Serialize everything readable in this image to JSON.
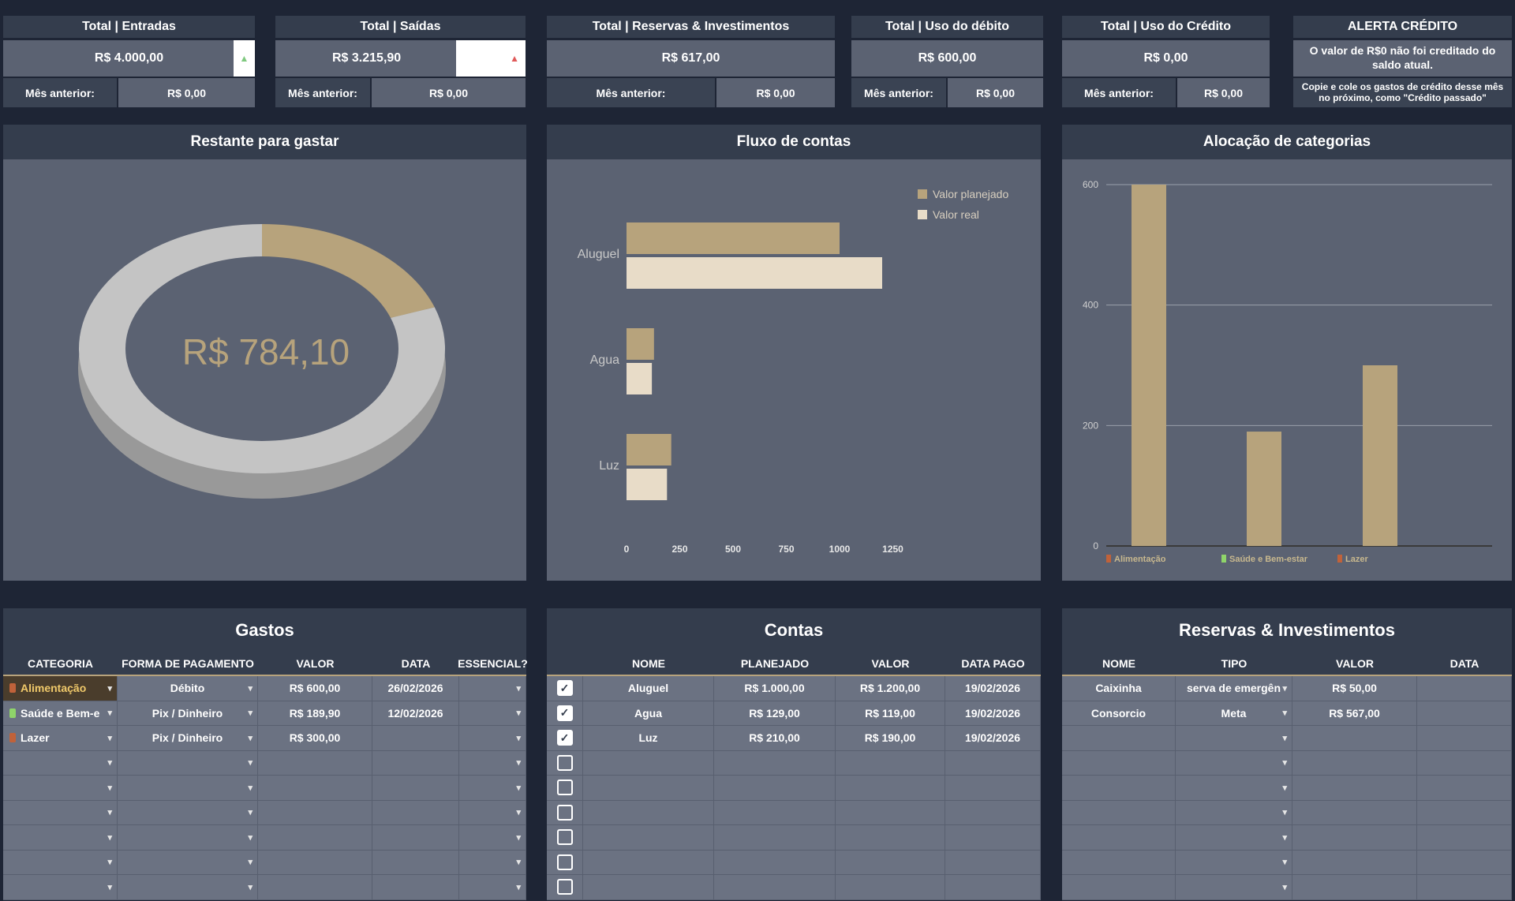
{
  "cards": [
    {
      "title": "Total | Entradas",
      "value": "R$ 4.000,00",
      "prev_label": "Mês anterior:",
      "prev_value": "R$ 0,00",
      "arrow": "▲",
      "arrow_color": "#7fc97f"
    },
    {
      "title": "Total | Saídas",
      "value": "R$ 3.215,90",
      "prev_label": "Mês anterior:",
      "prev_value": "R$ 0,00",
      "arrow": "▲",
      "arrow_color": "#e05a5a"
    },
    {
      "title": "Total | Reservas & Investimentos",
      "value": "R$ 617,00",
      "prev_label": "Mês anterior:",
      "prev_value": "R$ 0,00"
    },
    {
      "title": "Total | Uso do débito",
      "value": "R$ 600,00",
      "prev_label": "Mês anterior:",
      "prev_value": "R$ 0,00"
    },
    {
      "title": "Total | Uso do Crédito",
      "value": "R$ 0,00",
      "prev_label": "Mês anterior:",
      "prev_value": "R$ 0,00"
    }
  ],
  "alert": {
    "title": "ALERTA CRÉDITO",
    "msg1": "O valor de R$0 não foi creditado do saldo atual.",
    "msg2": "Copie e cole os gastos de crédito desse mês no próximo, como \"Crédito passado\""
  },
  "donut": {
    "title": "Restante para gastar",
    "center_value": "R$ 784,10",
    "remaining_fraction": 0.196,
    "colors": {
      "remaining": "#b7a37c",
      "spent": "#c4c4c4"
    }
  },
  "fluxo": {
    "title": "Fluxo de contas",
    "chart_data": {
      "type": "bar",
      "orientation": "horizontal",
      "categories": [
        "Aluguel",
        "Agua",
        "Luz"
      ],
      "series": [
        {
          "name": "Valor planejado",
          "values": [
            1000,
            129,
            210
          ],
          "color": "#b7a37c"
        },
        {
          "name": "Valor real",
          "values": [
            1200,
            119,
            190
          ],
          "color": "#e8dcc8"
        }
      ],
      "x_ticks": [
        "0",
        "250",
        "500",
        "750",
        "1000",
        "1250"
      ],
      "xlim": [
        0,
        1250
      ],
      "legend": "top-right"
    }
  },
  "alocacao": {
    "title": "Alocação de categorias",
    "chart_data": {
      "type": "bar",
      "categories": [
        "Alimentação",
        "Saúde e Bem-estar",
        "Lazer"
      ],
      "values": [
        600,
        189.9,
        300
      ],
      "y_ticks": [
        "0",
        "200",
        "400",
        "600"
      ],
      "ylim": [
        0,
        600
      ],
      "color": "#b7a37c",
      "category_colors": [
        "#c0623a",
        "#8fd46a",
        "#c0623a"
      ]
    }
  },
  "gastos": {
    "title": "Gastos",
    "headers": [
      "CATEGORIA",
      "FORMA DE PAGAMENTO",
      "VALOR",
      "DATA",
      "ESSENCIAL?"
    ],
    "rows": [
      {
        "cat": "Alimentação",
        "cat_color": "#c0623a",
        "pay": "Débito",
        "valor": "R$ 600,00",
        "data": "26/02/2026"
      },
      {
        "cat": "Saúde e Bem-e",
        "cat_color": "#8fd46a",
        "pay": "Pix / Dinheiro",
        "valor": "R$ 189,90",
        "data": "12/02/2026"
      },
      {
        "cat": "Lazer",
        "cat_color": "#c0623a",
        "pay": "Pix / Dinheiro",
        "valor": "R$ 300,00",
        "data": ""
      }
    ],
    "empty_rows": 6
  },
  "contas": {
    "title": "Contas",
    "headers": [
      "",
      "NOME",
      "PLANEJADO",
      "VALOR",
      "DATA PAGO"
    ],
    "rows": [
      {
        "nome": "Aluguel",
        "plan": "R$ 1.000,00",
        "valor": "R$ 1.200,00",
        "data": "19/02/2026"
      },
      {
        "nome": "Agua",
        "plan": "R$ 129,00",
        "valor": "R$ 119,00",
        "data": "19/02/2026"
      },
      {
        "nome": "Luz",
        "plan": "R$ 210,00",
        "valor": "R$ 190,00",
        "data": "19/02/2026"
      }
    ],
    "empty_rows": 6
  },
  "reservas": {
    "title": "Reservas & Investimentos",
    "headers": [
      "NOME",
      "TIPO",
      "VALOR",
      "DATA"
    ],
    "rows": [
      {
        "nome": "Caixinha",
        "tipo": "serva de emergên",
        "valor": "R$ 50,00",
        "data": ""
      },
      {
        "nome": "Consorcio",
        "tipo": "Meta",
        "valor": "R$ 567,00",
        "data": ""
      }
    ],
    "empty_rows": 7
  }
}
